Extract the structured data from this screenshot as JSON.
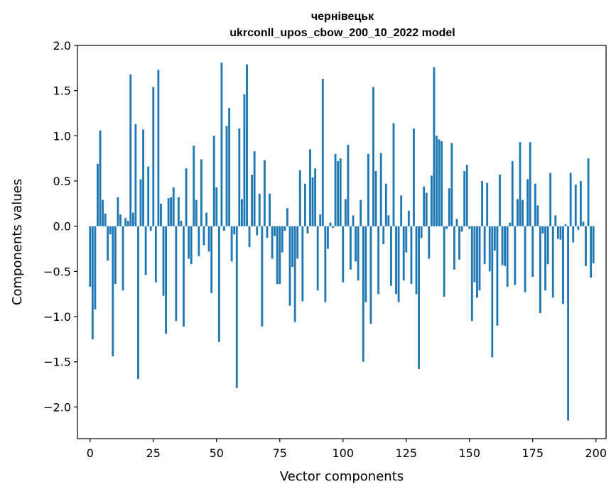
{
  "chart_data": {
    "type": "bar",
    "title": "чернівецьк",
    "subtitle": "ukrconll_upos_cbow_200_10_2022 model",
    "xlabel": "Vector components",
    "ylabel": "Components values",
    "xlim": [
      -5,
      204
    ],
    "ylim": [
      -2.35,
      2.0
    ],
    "xticks": [
      0,
      25,
      50,
      75,
      100,
      125,
      150,
      175,
      200
    ],
    "yticks": [
      -2.0,
      -1.5,
      -1.0,
      -0.5,
      0.0,
      0.5,
      1.0,
      1.5,
      2.0
    ],
    "ytick_labels": [
      "−2.0",
      "−1.5",
      "−1.0",
      "−0.5",
      "0.0",
      "0.5",
      "1.0",
      "1.5",
      "2.0"
    ],
    "bar_color": "#1f77b4",
    "values": [
      -0.67,
      -1.25,
      -0.92,
      0.69,
      1.06,
      0.29,
      0.14,
      -0.38,
      -0.09,
      -1.44,
      -0.64,
      0.32,
      0.13,
      -0.71,
      0.09,
      0.06,
      1.68,
      0.15,
      1.13,
      -1.69,
      0.52,
      1.07,
      -0.54,
      0.66,
      -0.05,
      1.54,
      -0.62,
      1.73,
      0.25,
      -0.77,
      -1.19,
      0.31,
      0.32,
      0.43,
      -1.05,
      0.32,
      0.06,
      -1.11,
      0.64,
      -0.36,
      -0.42,
      0.89,
      0.29,
      -0.33,
      0.74,
      -0.21,
      0.15,
      -0.28,
      -0.74,
      1.0,
      0.43,
      -1.28,
      1.81,
      -0.05,
      1.11,
      1.31,
      -0.39,
      -0.09,
      -1.79,
      1.08,
      0.3,
      1.46,
      1.79,
      -0.23,
      0.57,
      0.83,
      -0.1,
      0.36,
      -1.11,
      0.73,
      -0.13,
      0.36,
      -0.36,
      -0.11,
      -0.64,
      -0.64,
      -0.29,
      -0.05,
      0.2,
      -0.88,
      -0.45,
      -1.06,
      -0.36,
      0.62,
      -0.83,
      0.47,
      -0.08,
      0.85,
      0.54,
      0.64,
      -0.71,
      0.13,
      1.63,
      -0.84,
      -0.25,
      0.04,
      -0.02,
      0.8,
      0.72,
      0.75,
      -0.62,
      0.3,
      0.9,
      -0.48,
      0.12,
      -0.39,
      -0.6,
      0.29,
      -1.5,
      -0.84,
      0.8,
      -1.08,
      1.54,
      0.61,
      -0.75,
      0.81,
      -0.2,
      0.47,
      0.12,
      -0.66,
      1.14,
      -0.75,
      -0.84,
      0.34,
      -0.6,
      -0.29,
      0.17,
      -0.64,
      1.08,
      -0.75,
      -1.58,
      -0.13,
      0.44,
      0.37,
      -0.36,
      0.56,
      1.76,
      1.0,
      0.96,
      0.94,
      -0.78,
      -0.03,
      0.42,
      0.92,
      -0.48,
      0.08,
      -0.37,
      -0.06,
      0.61,
      0.68,
      -0.03,
      -1.05,
      -0.62,
      -0.79,
      -0.71,
      0.5,
      -0.42,
      0.48,
      -0.5,
      -1.45,
      -0.27,
      -1.1,
      0.57,
      -0.43,
      -0.44,
      -0.67,
      0.04,
      0.72,
      -0.65,
      0.3,
      0.93,
      0.29,
      -0.73,
      0.52,
      0.93,
      -0.56,
      0.47,
      0.23,
      -0.96,
      -0.08,
      -0.71,
      -0.42,
      0.59,
      -0.79,
      0.12,
      -0.14,
      -0.15,
      -0.86,
      0.02,
      -2.15,
      0.59,
      -0.18,
      0.46,
      -0.04,
      0.5,
      0.05,
      -0.44,
      0.75,
      -0.57,
      -0.41
    ]
  }
}
